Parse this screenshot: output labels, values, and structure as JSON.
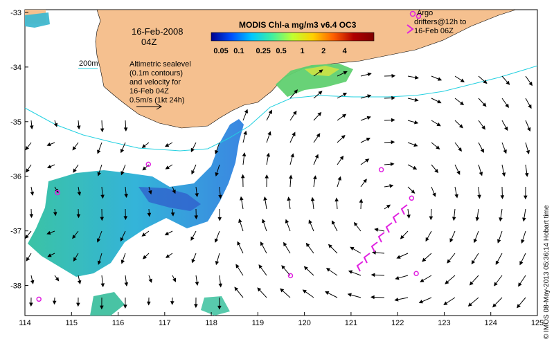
{
  "map": {
    "date_line": "16-Feb-2008",
    "time_line": "04Z",
    "contour_label": "200m",
    "altimetry_lines": [
      "Altimetric sealevel",
      "(0.1m contours)",
      "and velocity for",
      "16-Feb 04Z",
      "0.5m/s (1kt 24h)"
    ],
    "argo_lines": [
      "Argo",
      "drifters@12h to",
      "16-Feb 06Z"
    ],
    "credit": "© IMOS 08-May-2013 05:36:14 Hobart time",
    "colorbar_title": "MODIS Chl-a mg/m3 v6.4 OC3",
    "colorbar_ticks": [
      {
        "label": "0.05",
        "frac": 0.06
      },
      {
        "label": "0.1",
        "frac": 0.17
      },
      {
        "label": "0.25",
        "frac": 0.32
      },
      {
        "label": "0.5",
        "frac": 0.43
      },
      {
        "label": "1",
        "frac": 0.56
      },
      {
        "label": "2",
        "frac": 0.69
      },
      {
        "label": "4",
        "frac": 0.82
      }
    ],
    "colorbar_colors": [
      "#00008f",
      "#0050ff",
      "#00c8ff",
      "#40f0a0",
      "#c0ff30",
      "#ffd000",
      "#ff6000",
      "#b00000",
      "#800000"
    ],
    "lon_ticks": [
      114,
      115,
      116,
      117,
      118,
      119,
      120,
      121,
      122,
      123,
      124,
      125
    ],
    "lat_ticks": [
      -33,
      -34,
      -35,
      -36,
      -37,
      -38
    ],
    "lon_range": [
      114,
      125
    ],
    "lat_range": [
      -38.55,
      -32.95
    ],
    "colors": {
      "land": "#f5c08f",
      "contour": "#22d0e0",
      "argo": "#e020e0",
      "arrow": "#000000"
    },
    "argo_markers": [
      {
        "lon": 116.65,
        "lat": -35.78
      },
      {
        "lon": 114.7,
        "lat": -36.3
      },
      {
        "lon": 121.65,
        "lat": -35.88
      },
      {
        "lon": 122.3,
        "lat": -36.4
      },
      {
        "lon": 119.7,
        "lat": -37.82
      },
      {
        "lon": 122.4,
        "lat": -37.78
      },
      {
        "lon": 114.3,
        "lat": -38.25
      },
      {
        "lon": 122.45,
        "lat": -33.07
      }
    ]
  }
}
